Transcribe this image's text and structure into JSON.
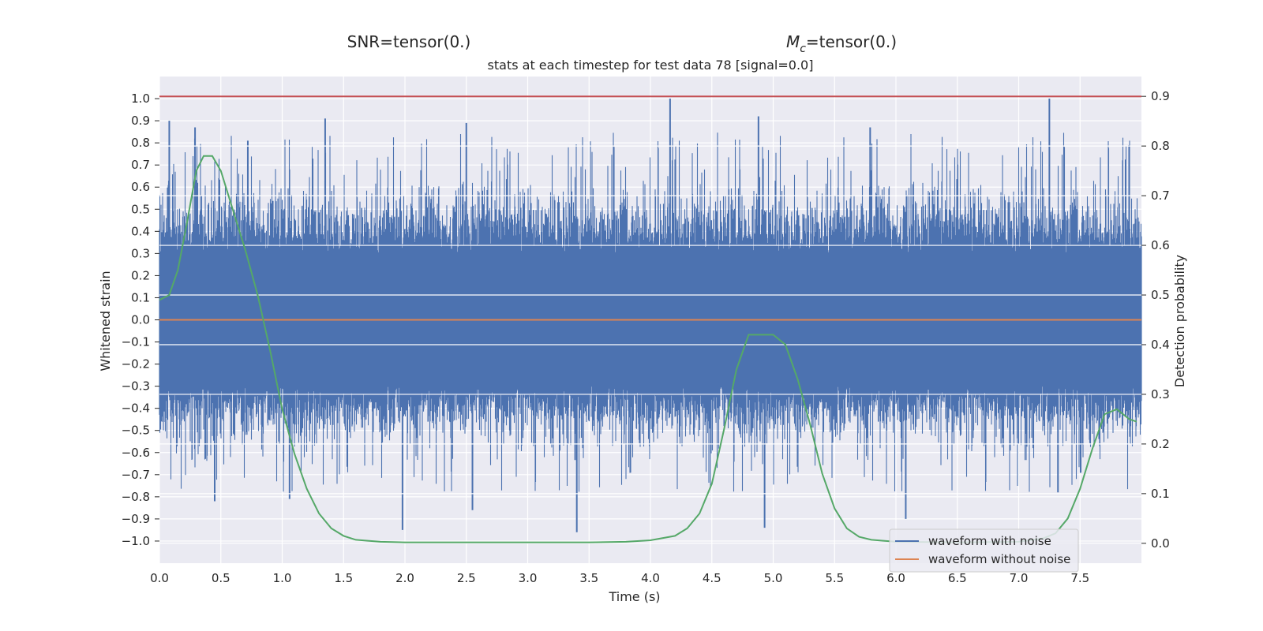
{
  "chart_data": {
    "type": "line",
    "title": "stats at each timestep for test data 78 [signal=0.0]",
    "sup_titles": {
      "snr": "SNR=tensor(0.)",
      "mc_symbol": "M",
      "mc_subscript": "c",
      "mc_rest": "=tensor(0.)"
    },
    "xlabel": "Time (s)",
    "ylabel_left": "Whitened strain",
    "ylabel_right": "Detection probability",
    "xlim": [
      0.0,
      8.0
    ],
    "ylim_left": [
      -1.1,
      1.1
    ],
    "ylim_right": [
      -0.04,
      0.94
    ],
    "x_ticks": [
      "0.0",
      "0.5",
      "1.0",
      "1.5",
      "2.0",
      "2.5",
      "3.0",
      "3.5",
      "4.0",
      "4.5",
      "5.0",
      "5.5",
      "6.0",
      "6.5",
      "7.0",
      "7.5"
    ],
    "y_ticks_left": [
      "1.0",
      "0.9",
      "0.8",
      "0.7",
      "0.6",
      "0.5",
      "0.4",
      "0.3",
      "0.2",
      "0.1",
      "0.0",
      "−0.1",
      "−0.2",
      "−0.3",
      "−0.4",
      "−0.5",
      "−0.6",
      "−0.7",
      "−0.8",
      "−0.9",
      "−1.0"
    ],
    "y_ticks_right": [
      "0.9",
      "0.8",
      "0.7",
      "0.6",
      "0.5",
      "0.4",
      "0.3",
      "0.2",
      "0.1",
      "0.0"
    ],
    "grid": true,
    "legend_position": "lower-right",
    "series": [
      {
        "name": "waveform with noise",
        "axis": "left",
        "color": "#4c72b0",
        "kind": "noise",
        "envelope_note": "dense noise trace spanning roughly -0.96 to 1.0",
        "peaks": [
          {
            "x": 0.08,
            "y": 0.9
          },
          {
            "x": 0.29,
            "y": 0.87
          },
          {
            "x": 0.72,
            "y": 0.81
          },
          {
            "x": 1.35,
            "y": 0.91
          },
          {
            "x": 2.5,
            "y": 0.89
          },
          {
            "x": 4.16,
            "y": 1.0
          },
          {
            "x": 4.88,
            "y": 0.92
          },
          {
            "x": 5.79,
            "y": 0.87
          },
          {
            "x": 7.25,
            "y": 1.0
          },
          {
            "x": 7.9,
            "y": 0.79
          }
        ],
        "troughs": [
          {
            "x": 0.45,
            "y": -0.82
          },
          {
            "x": 1.06,
            "y": -0.81
          },
          {
            "x": 1.98,
            "y": -0.95
          },
          {
            "x": 2.55,
            "y": -0.86
          },
          {
            "x": 3.4,
            "y": -0.96
          },
          {
            "x": 4.93,
            "y": -0.94
          },
          {
            "x": 6.08,
            "y": -0.9
          },
          {
            "x": 7.32,
            "y": -0.78
          }
        ]
      },
      {
        "name": "waveform without noise",
        "axis": "left",
        "color": "#dd8452",
        "x": [
          0.0,
          8.0
        ],
        "y": [
          0.0,
          0.0
        ]
      },
      {
        "axis": "right",
        "color": "#55a868",
        "x": [
          0.0,
          0.08,
          0.15,
          0.22,
          0.3,
          0.36,
          0.43,
          0.5,
          0.6,
          0.7,
          0.8,
          0.9,
          1.0,
          1.1,
          1.2,
          1.3,
          1.4,
          1.5,
          1.6,
          1.8,
          2.0,
          2.5,
          3.0,
          3.5,
          3.8,
          4.0,
          4.2,
          4.3,
          4.4,
          4.5,
          4.6,
          4.7,
          4.8,
          4.9,
          5.0,
          5.1,
          5.2,
          5.3,
          5.4,
          5.5,
          5.6,
          5.7,
          5.8,
          6.0,
          6.5,
          7.0,
          7.2,
          7.3,
          7.4,
          7.5,
          7.6,
          7.7,
          7.8,
          7.9,
          7.96
        ],
        "y": [
          0.49,
          0.5,
          0.55,
          0.64,
          0.75,
          0.78,
          0.78,
          0.75,
          0.67,
          0.59,
          0.5,
          0.39,
          0.27,
          0.18,
          0.11,
          0.06,
          0.03,
          0.015,
          0.007,
          0.003,
          0.002,
          0.002,
          0.002,
          0.002,
          0.003,
          0.006,
          0.015,
          0.03,
          0.06,
          0.12,
          0.23,
          0.35,
          0.42,
          0.42,
          0.42,
          0.4,
          0.33,
          0.24,
          0.14,
          0.07,
          0.03,
          0.013,
          0.007,
          0.003,
          0.002,
          0.003,
          0.01,
          0.02,
          0.05,
          0.11,
          0.19,
          0.26,
          0.27,
          0.25,
          0.245
        ]
      },
      {
        "axis": "right",
        "color": "#c44e52",
        "x": [
          0.0,
          8.0
        ],
        "y": [
          0.9,
          0.9
        ]
      }
    ]
  },
  "legend": {
    "items": [
      {
        "label": "waveform with noise",
        "color": "#4c72b0"
      },
      {
        "label": "waveform without noise",
        "color": "#dd8452"
      }
    ]
  },
  "colors": {
    "plot_bg": "#eaeaf2",
    "grid": "#ffffff",
    "text": "#262626"
  }
}
